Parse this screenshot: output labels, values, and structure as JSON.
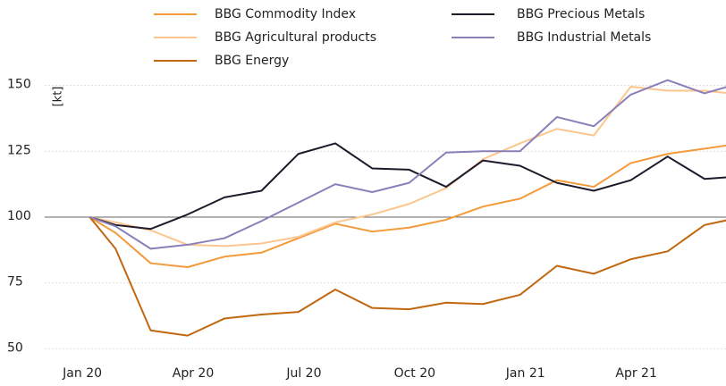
{
  "chart_data": {
    "type": "line",
    "y_label": "[kt]",
    "x": [
      0.2,
      0.9,
      1.85,
      2.85,
      3.85,
      4.85,
      5.85,
      6.85,
      7.85,
      8.85,
      9.85,
      10.85,
      11.85,
      12.85,
      13.85,
      14.85,
      15.85,
      16.85,
      17.85
    ],
    "xlim": [
      -2.23,
      17.43
    ],
    "xticks": [
      {
        "value": 0,
        "label": "Jan 20"
      },
      {
        "value": 3,
        "label": "Apr 20"
      },
      {
        "value": 6,
        "label": "Jul 20"
      },
      {
        "value": 9,
        "label": "Oct 20"
      },
      {
        "value": 12,
        "label": "Jan 21"
      },
      {
        "value": 15,
        "label": "Apr 21"
      }
    ],
    "ylim": [
      43,
      158
    ],
    "yticks": [
      50,
      75,
      100,
      125,
      150
    ],
    "grid": true,
    "reference_line": 100,
    "series": [
      {
        "name": "BBG Commodity Index",
        "color": "#f39a3a",
        "values": [
          100,
          94,
          82.5,
          81,
          85,
          86.5,
          92,
          97.5,
          94.5,
          96,
          99,
          104,
          107,
          114,
          111.5,
          120.5,
          124,
          126,
          128
        ]
      },
      {
        "name": "BBG Agricultural products",
        "color": "#fcc68e",
        "values": [
          100,
          98,
          95,
          89.5,
          89,
          90,
          92.5,
          98,
          101,
          105,
          111,
          122,
          128,
          133.5,
          131,
          149.5,
          148,
          148,
          146.5
        ]
      },
      {
        "name": "BBG Energy",
        "color": "#c0670f",
        "values": [
          100,
          88,
          57,
          55,
          61.5,
          63,
          64,
          72.5,
          65.5,
          65,
          67.5,
          67,
          70.5,
          81.5,
          78.5,
          84,
          87,
          97,
          100
        ]
      },
      {
        "name": "BBG Precious Metals",
        "color": "#1e1a2c",
        "values": [
          100,
          97,
          95.5,
          101,
          107.5,
          110,
          124,
          128,
          118.5,
          118,
          111.5,
          121.5,
          119.5,
          113,
          110,
          114,
          123,
          114.5,
          115.5
        ]
      },
      {
        "name": "BBG Industrial Metals",
        "color": "#8a7fb8",
        "values": [
          100,
          96.5,
          88,
          89.5,
          92,
          98.5,
          105.5,
          112.5,
          109.5,
          113,
          124.5,
          125,
          125,
          138,
          134.5,
          146.5,
          152,
          147,
          151
        ]
      }
    ]
  }
}
